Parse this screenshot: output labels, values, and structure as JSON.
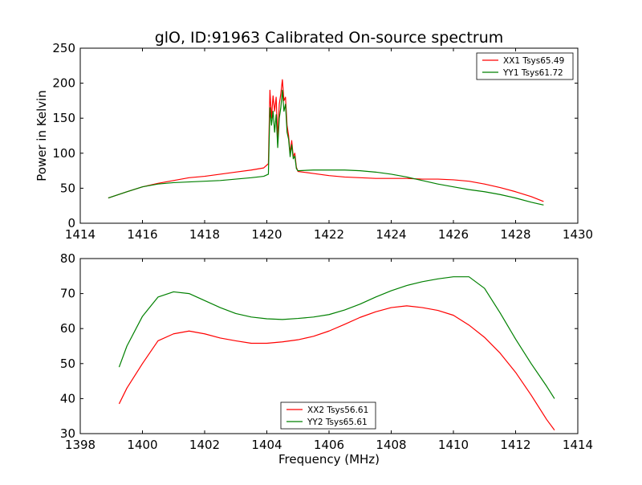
{
  "figure": {
    "title": "glO, ID:91963 Calibrated On-source spectrum"
  },
  "chart_data": [
    {
      "type": "line",
      "title": "glO, ID:91963 Calibrated On-source spectrum",
      "xlabel": "",
      "ylabel": "Power in Kelvin",
      "xlim": [
        1414,
        1430
      ],
      "ylim": [
        0,
        250
      ],
      "x_ticks": [
        1414,
        1416,
        1418,
        1420,
        1422,
        1424,
        1426,
        1428,
        1430
      ],
      "y_ticks": [
        0,
        50,
        100,
        150,
        200,
        250
      ],
      "grid": false,
      "legend_position": "top-right",
      "series": [
        {
          "name": "XX1 Tsys65.49",
          "color": "#ff0000",
          "x": [
            1414.9,
            1415.5,
            1416.0,
            1416.5,
            1417.0,
            1417.5,
            1418.0,
            1418.5,
            1419.0,
            1419.5,
            1419.9,
            1420.05,
            1420.1,
            1420.15,
            1420.2,
            1420.25,
            1420.3,
            1420.35,
            1420.4,
            1420.45,
            1420.5,
            1420.55,
            1420.6,
            1420.65,
            1420.7,
            1420.75,
            1420.8,
            1420.85,
            1420.9,
            1420.95,
            1421.0,
            1421.5,
            1422.0,
            1422.5,
            1423.0,
            1423.5,
            1424.0,
            1424.5,
            1425.0,
            1425.5,
            1426.0,
            1426.5,
            1427.0,
            1427.5,
            1428.0,
            1428.5,
            1428.9
          ],
          "y": [
            36,
            45,
            52,
            57,
            61,
            65,
            67,
            70,
            73,
            76,
            79,
            85,
            190,
            150,
            182,
            160,
            180,
            120,
            170,
            185,
            205,
            175,
            180,
            140,
            125,
            100,
            118,
            95,
            100,
            80,
            74,
            71,
            68,
            66,
            65,
            64,
            64,
            64,
            63,
            63,
            62,
            60,
            56,
            51,
            45,
            38,
            31
          ]
        },
        {
          "name": "YY1 Tsys61.72",
          "color": "#008000",
          "x": [
            1414.9,
            1415.5,
            1416.0,
            1416.5,
            1417.0,
            1417.5,
            1418.0,
            1418.5,
            1419.0,
            1419.5,
            1419.9,
            1420.05,
            1420.1,
            1420.15,
            1420.2,
            1420.25,
            1420.3,
            1420.35,
            1420.4,
            1420.45,
            1420.5,
            1420.55,
            1420.6,
            1420.65,
            1420.7,
            1420.75,
            1420.8,
            1420.85,
            1420.9,
            1420.95,
            1421.0,
            1421.5,
            1422.0,
            1422.5,
            1423.0,
            1423.5,
            1424.0,
            1424.5,
            1425.0,
            1425.5,
            1426.0,
            1426.5,
            1427.0,
            1427.5,
            1428.0,
            1428.5,
            1428.9
          ],
          "y": [
            36,
            45,
            52,
            56,
            58,
            59,
            60,
            61,
            63,
            65,
            67,
            70,
            165,
            140,
            160,
            130,
            155,
            108,
            150,
            165,
            190,
            160,
            170,
            130,
            120,
            95,
            112,
            92,
            96,
            78,
            75,
            76,
            76,
            76,
            75,
            73,
            70,
            66,
            61,
            56,
            52,
            48,
            45,
            41,
            36,
            30,
            26
          ]
        }
      ]
    },
    {
      "type": "line",
      "title": "",
      "xlabel": "Frequency (MHz)",
      "ylabel": "",
      "xlim": [
        1398,
        1414
      ],
      "ylim": [
        30,
        80
      ],
      "x_ticks": [
        1398,
        1400,
        1402,
        1404,
        1406,
        1408,
        1410,
        1412,
        1414
      ],
      "y_ticks": [
        30,
        40,
        50,
        60,
        70,
        80
      ],
      "grid": false,
      "legend_position": "bottom-center",
      "series": [
        {
          "name": "XX2 Tsys56.61",
          "color": "#ff0000",
          "x": [
            1399.25,
            1399.5,
            1400.0,
            1400.5,
            1401.0,
            1401.5,
            1402.0,
            1402.5,
            1403.0,
            1403.5,
            1404.0,
            1404.5,
            1405.0,
            1405.5,
            1406.0,
            1406.5,
            1407.0,
            1407.5,
            1408.0,
            1408.5,
            1409.0,
            1409.5,
            1410.0,
            1410.5,
            1411.0,
            1411.5,
            1412.0,
            1412.5,
            1413.0,
            1413.25
          ],
          "y": [
            38.5,
            43,
            50,
            56.5,
            58.5,
            59.3,
            58.5,
            57.3,
            56.5,
            55.8,
            55.8,
            56.2,
            56.8,
            57.8,
            59.3,
            61.2,
            63.2,
            64.8,
            66,
            66.5,
            66,
            65.2,
            63.8,
            61,
            57.5,
            53,
            47.5,
            41,
            34,
            31
          ]
        },
        {
          "name": "YY2 Tsys65.61",
          "color": "#008000",
          "x": [
            1399.25,
            1399.5,
            1400.0,
            1400.5,
            1401.0,
            1401.5,
            1402.0,
            1402.5,
            1403.0,
            1403.5,
            1404.0,
            1404.5,
            1405.0,
            1405.5,
            1406.0,
            1406.5,
            1407.0,
            1407.5,
            1408.0,
            1408.5,
            1409.0,
            1409.5,
            1410.0,
            1410.5,
            1411.0,
            1411.5,
            1412.0,
            1412.5,
            1413.0,
            1413.25
          ],
          "y": [
            49,
            55,
            63.5,
            69,
            70.5,
            70,
            68,
            66,
            64.3,
            63.3,
            62.8,
            62.6,
            62.9,
            63.3,
            64,
            65.3,
            67,
            69,
            70.8,
            72.3,
            73.4,
            74.2,
            74.8,
            74.8,
            71.5,
            64.5,
            57,
            50,
            43.5,
            40
          ]
        }
      ]
    }
  ]
}
